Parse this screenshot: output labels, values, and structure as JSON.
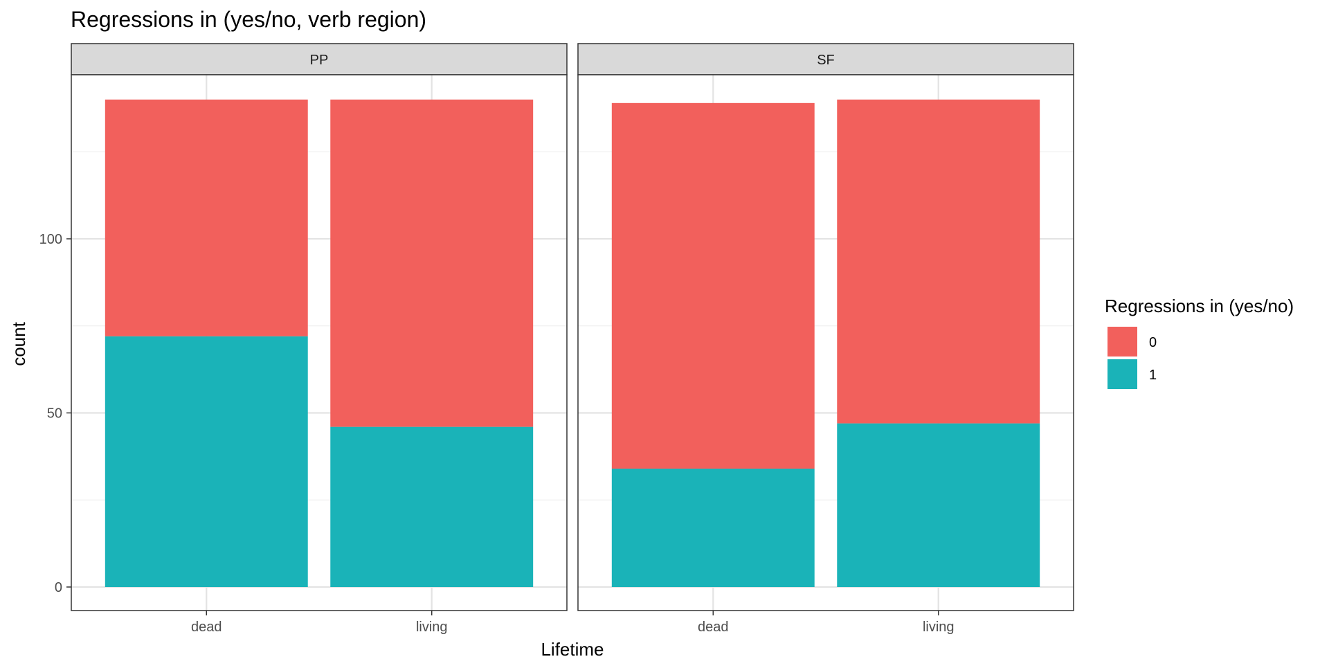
{
  "chart_data": {
    "type": "bar",
    "stacked": true,
    "title": "Regressions in (yes/no, verb region)",
    "xlabel": "Lifetime",
    "ylabel": "count",
    "ylim": [
      -7,
      147
    ],
    "yticks": [
      0,
      50,
      100
    ],
    "grid": true,
    "facets": [
      "PP",
      "SF"
    ],
    "categories": [
      "dead",
      "living"
    ],
    "legend": {
      "title": "Regressions in (yes/no)",
      "position": "right",
      "items": [
        {
          "label": "0",
          "color": "#F2605C"
        },
        {
          "label": "1",
          "color": "#1AB3B8"
        }
      ]
    },
    "series": [
      {
        "name": "0",
        "color": "#F2605C",
        "values": {
          "PP": [
            68,
            94
          ],
          "SF": [
            105,
            93
          ]
        }
      },
      {
        "name": "1",
        "color": "#1AB3B8",
        "values": {
          "PP": [
            72,
            46
          ],
          "SF": [
            34,
            47
          ]
        }
      }
    ]
  }
}
